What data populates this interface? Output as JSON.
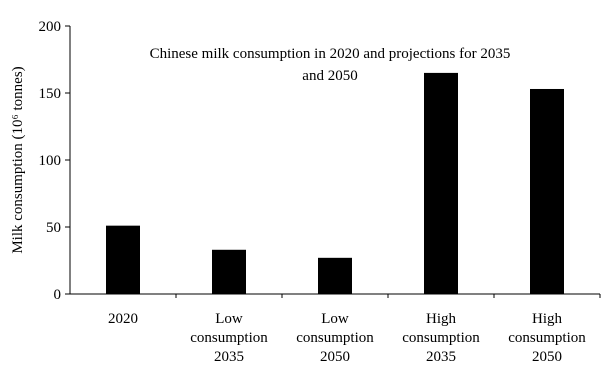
{
  "chart_data": {
    "type": "bar",
    "title_lines": [
      "Chinese milk consumption in 2020 and projections for 2035",
      "and 2050"
    ],
    "ylabel": "Milk consumption (10⁶ tonnes)",
    "xlabel": "",
    "categories": [
      [
        "2020"
      ],
      [
        "Low",
        "consumption",
        "2035"
      ],
      [
        "Low",
        "consumption",
        "2050"
      ],
      [
        "High",
        "consumption",
        "2035"
      ],
      [
        "High",
        "consumption",
        "2050"
      ]
    ],
    "values": [
      51,
      33,
      27,
      165,
      153
    ],
    "ylim": [
      0,
      200
    ],
    "yticks": [
      0,
      50,
      100,
      150,
      200
    ],
    "grid": false,
    "legend": "none",
    "bar_color": "#000000"
  }
}
